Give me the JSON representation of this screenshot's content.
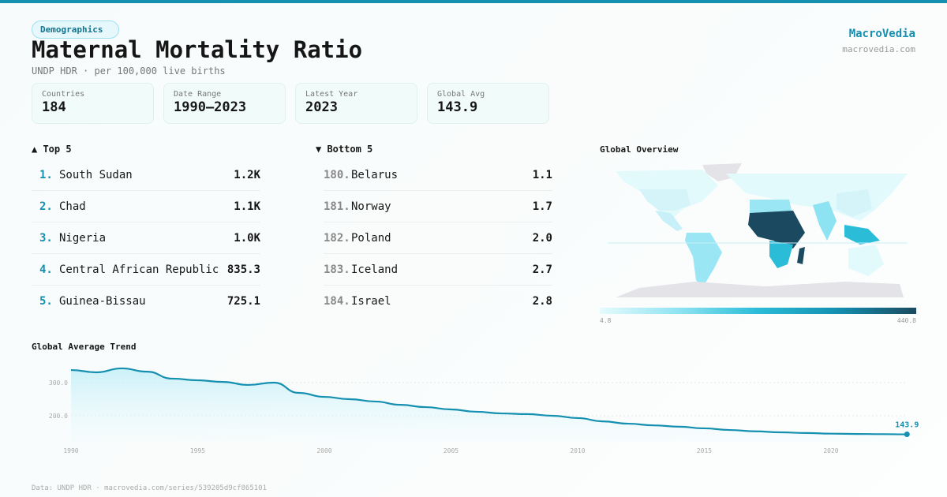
{
  "header": {
    "badge": "Demographics",
    "title": "Maternal Mortality Ratio",
    "subtitle": "UNDP HDR · per 100,000 live births",
    "brand": "MacroVedia",
    "site": "macrovedia.com"
  },
  "stats": [
    {
      "label": "Countries",
      "value": "184"
    },
    {
      "label": "Date Range",
      "value": "1990–2023"
    },
    {
      "label": "Latest Year",
      "value": "2023"
    },
    {
      "label": "Global Avg",
      "value": "143.9"
    }
  ],
  "top5": {
    "title": "▲ Top 5",
    "items": [
      {
        "rank": "1.",
        "country": "South Sudan",
        "value": "1.2K"
      },
      {
        "rank": "2.",
        "country": "Chad",
        "value": "1.1K"
      },
      {
        "rank": "3.",
        "country": "Nigeria",
        "value": "1.0K"
      },
      {
        "rank": "4.",
        "country": "Central African Republic",
        "value": "835.3"
      },
      {
        "rank": "5.",
        "country": "Guinea-Bissau",
        "value": "725.1"
      }
    ]
  },
  "bottom5": {
    "title": "▼ Bottom 5",
    "items": [
      {
        "rank": "180.",
        "country": "Belarus",
        "value": "1.1"
      },
      {
        "rank": "181.",
        "country": "Norway",
        "value": "1.7"
      },
      {
        "rank": "182.",
        "country": "Poland",
        "value": "2.0"
      },
      {
        "rank": "183.",
        "country": "Iceland",
        "value": "2.7"
      },
      {
        "rank": "184.",
        "country": "Israel",
        "value": "2.8"
      }
    ]
  },
  "map": {
    "title": "Global Overview",
    "legend_min": "4.8",
    "legend_max": "440.8",
    "colors": {
      "low": "#e6fbfd",
      "mid": "#2bbcd8",
      "high": "#1b4a60",
      "nodata": "#e4e4e8"
    }
  },
  "footer": "Data: UNDP HDR · macrovedia.com/series/539205d9cf865101",
  "chart_data": {
    "type": "area",
    "title": "Global Average Trend",
    "xlabel": "",
    "ylabel": "",
    "color": "#1590b0",
    "x": [
      1990,
      1991,
      1992,
      1993,
      1994,
      1995,
      1996,
      1997,
      1998,
      1999,
      2000,
      2001,
      2002,
      2003,
      2004,
      2005,
      2006,
      2007,
      2008,
      2009,
      2010,
      2011,
      2012,
      2013,
      2014,
      2015,
      2016,
      2017,
      2018,
      2019,
      2020,
      2021,
      2022,
      2023
    ],
    "y": [
      338,
      331,
      343,
      333,
      312,
      307,
      302,
      293,
      300,
      269,
      257,
      250,
      243,
      233,
      226,
      219,
      212,
      207,
      205,
      200,
      193,
      183,
      176,
      171,
      167,
      162,
      157,
      153,
      150,
      148,
      146,
      145,
      144.5,
      143.9
    ],
    "yticks": [
      "200.0",
      "300.0"
    ],
    "xticks": [
      "1990",
      "1995",
      "2000",
      "2005",
      "2010",
      "2015",
      "2020"
    ],
    "end_label": "143.9",
    "grid": "horizontal dotted"
  }
}
